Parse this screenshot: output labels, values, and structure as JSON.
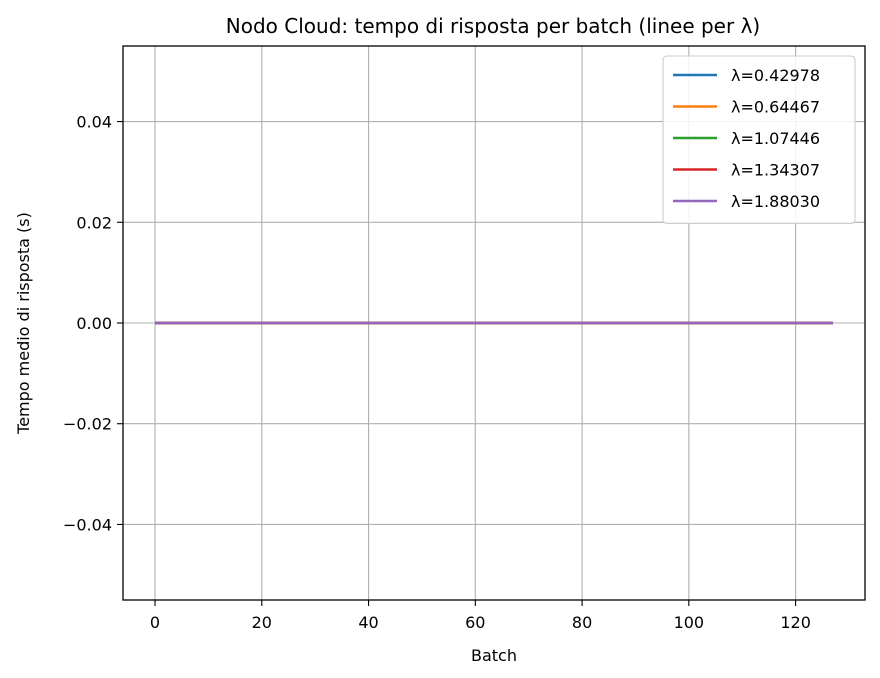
{
  "chart_data": {
    "type": "line",
    "title": "Nodo Cloud: tempo di risposta per batch (linee per λ)",
    "xlabel": "Batch",
    "ylabel": "Tempo medio di risposta (s)",
    "xlim": [
      -6,
      133
    ],
    "ylim": [
      -0.055,
      0.055
    ],
    "xticks": [
      0,
      20,
      40,
      60,
      80,
      100,
      120
    ],
    "xtick_labels": [
      "0",
      "20",
      "40",
      "60",
      "80",
      "100",
      "120"
    ],
    "yticks": [
      0.04,
      0.02,
      0.0,
      -0.02,
      -0.04
    ],
    "ytick_labels": [
      "0.04",
      "0.02",
      "0.00",
      "−0.02",
      "−0.04"
    ],
    "grid": true,
    "legend_position": "top-right",
    "x": [
      0,
      127
    ],
    "series": [
      {
        "name": "λ=0.42978",
        "color": "#1f77b4",
        "values": [
          0,
          0
        ]
      },
      {
        "name": "λ=0.64467",
        "color": "#ff7f0e",
        "values": [
          0,
          0
        ]
      },
      {
        "name": "λ=1.07446",
        "color": "#2ca02c",
        "values": [
          0,
          0
        ]
      },
      {
        "name": "λ=1.34307",
        "color": "#d62728",
        "values": [
          0,
          0
        ]
      },
      {
        "name": "λ=1.88030",
        "color": "#9467bd",
        "values": [
          0,
          0
        ]
      }
    ]
  }
}
